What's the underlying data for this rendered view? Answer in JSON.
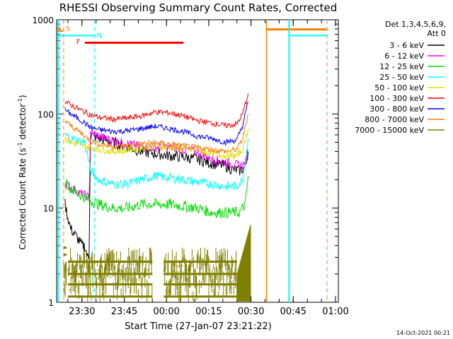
{
  "chart_data": {
    "type": "line",
    "title": "RHESSI Observing Summary Count Rates, Corrected",
    "xlabel": "Start Time (27-Jan-07 23:21:22)",
    "ylabel_main": "Corrected Count Rate (s",
    "ylabel_sup1": "-1",
    "ylabel_mid": " detector",
    "ylabel_sup2": "-1",
    "ylabel_end": ")",
    "x_start_minutes": 0,
    "xlim": [
      0,
      100
    ],
    "y_scale": "log",
    "ylim": [
      1,
      1000
    ],
    "y_ticks": [
      1,
      10,
      100,
      1000
    ],
    "y_tick_labels": [
      "1",
      "10",
      "100",
      "1000"
    ],
    "x_ticks": [
      9,
      24,
      39,
      54,
      69,
      84,
      99
    ],
    "x_tick_labels": [
      "23:30",
      "23:45",
      "00:00",
      "00:15",
      "00:30",
      "00:45",
      "01:00"
    ],
    "legend": {
      "header1": "Det 1,3,4,5,6,9,",
      "header2": "Att 0",
      "entries": [
        {
          "label": "3 - 6 keV",
          "color": "#000000"
        },
        {
          "label": "6 - 12 keV",
          "color": "#ff00ff"
        },
        {
          "label": "12 - 25 keV",
          "color": "#00dd00"
        },
        {
          "label": "25 - 50 keV",
          "color": "#00ffff"
        },
        {
          "label": "50 - 100 keV",
          "color": "#dddd00"
        },
        {
          "label": "100 - 300 keV",
          "color": "#ff0000"
        },
        {
          "label": "300 - 800 keV",
          "color": "#0000ff"
        },
        {
          "label": "800 - 7000 keV",
          "color": "#ff8000"
        },
        {
          "label": "7000 - 15000 keV",
          "color": "#808000"
        }
      ]
    },
    "series": [
      {
        "name": "3 - 6 keV",
        "color": "#000000",
        "noise": 0.06,
        "points": [
          [
            3,
            11
          ],
          [
            4,
            8
          ],
          [
            5,
            6
          ],
          [
            7,
            5
          ],
          [
            9,
            4
          ],
          [
            10,
            4
          ],
          [
            11,
            3
          ],
          [
            11.5,
            3
          ],
          [
            12,
            60
          ],
          [
            15,
            55
          ],
          [
            20,
            50
          ],
          [
            25,
            45
          ],
          [
            30,
            40
          ],
          [
            35,
            38
          ],
          [
            40,
            36
          ],
          [
            45,
            35
          ],
          [
            50,
            33
          ],
          [
            55,
            30
          ],
          [
            60,
            28
          ],
          [
            62,
            26
          ],
          [
            65,
            25
          ],
          [
            67,
            27
          ],
          [
            68,
            40
          ]
        ]
      },
      {
        "name": "6 - 12 keV",
        "color": "#ff00ff",
        "noise": 0.05,
        "points": [
          [
            3,
            18
          ],
          [
            6,
            16
          ],
          [
            9,
            14
          ],
          [
            11.5,
            13
          ],
          [
            12,
            65
          ],
          [
            15,
            58
          ],
          [
            20,
            52
          ],
          [
            30,
            45
          ],
          [
            40,
            44
          ],
          [
            50,
            40
          ],
          [
            55,
            33
          ],
          [
            60,
            31
          ],
          [
            65,
            28
          ],
          [
            67,
            30
          ],
          [
            68,
            42
          ]
        ]
      },
      {
        "name": "12 - 25 keV",
        "color": "#00dd00",
        "noise": 0.06,
        "points": [
          [
            3,
            20
          ],
          [
            5,
            16
          ],
          [
            8,
            14
          ],
          [
            10,
            13
          ],
          [
            12,
            12
          ],
          [
            15,
            11
          ],
          [
            20,
            10
          ],
          [
            25,
            10
          ],
          [
            30,
            11
          ],
          [
            35,
            11
          ],
          [
            40,
            11
          ],
          [
            45,
            10.5
          ],
          [
            50,
            10
          ],
          [
            55,
            9
          ],
          [
            60,
            9
          ],
          [
            65,
            9
          ],
          [
            67,
            11
          ],
          [
            68,
            22
          ]
        ]
      },
      {
        "name": "25 - 50 keV",
        "color": "#00ffff",
        "noise": 0.05,
        "points": [
          [
            3,
            60
          ],
          [
            5,
            55
          ],
          [
            8,
            52
          ],
          [
            10,
            50
          ],
          [
            12,
            25
          ],
          [
            15,
            20
          ],
          [
            20,
            18
          ],
          [
            25,
            18
          ],
          [
            30,
            20
          ],
          [
            35,
            22
          ],
          [
            40,
            21
          ],
          [
            45,
            20
          ],
          [
            50,
            19
          ],
          [
            55,
            18
          ],
          [
            60,
            17
          ],
          [
            64,
            17
          ],
          [
            66,
            20
          ],
          [
            68,
            55
          ]
        ]
      },
      {
        "name": "50 - 100 keV",
        "color": "#dddd00",
        "noise": 0.04,
        "points": [
          [
            3,
            55
          ],
          [
            5,
            50
          ],
          [
            10,
            45
          ],
          [
            15,
            42
          ],
          [
            20,
            40
          ],
          [
            25,
            41
          ],
          [
            30,
            44
          ],
          [
            35,
            46
          ],
          [
            40,
            44
          ],
          [
            45,
            42
          ],
          [
            50,
            41
          ],
          [
            55,
            38
          ],
          [
            60,
            36
          ],
          [
            64,
            36
          ],
          [
            66,
            42
          ],
          [
            68,
            70
          ]
        ]
      },
      {
        "name": "100 - 300 keV",
        "color": "#ff0000",
        "noise": 0.03,
        "points": [
          [
            3,
            135
          ],
          [
            5,
            125
          ],
          [
            8,
            112
          ],
          [
            10,
            105
          ],
          [
            12,
            98
          ],
          [
            15,
            92
          ],
          [
            20,
            88
          ],
          [
            25,
            90
          ],
          [
            30,
            95
          ],
          [
            35,
            105
          ],
          [
            40,
            103
          ],
          [
            45,
            95
          ],
          [
            50,
            85
          ],
          [
            55,
            80
          ],
          [
            60,
            75
          ],
          [
            64,
            78
          ],
          [
            66,
            100
          ],
          [
            68,
            165
          ]
        ]
      },
      {
        "name": "300 - 800 keV",
        "color": "#0000ff",
        "noise": 0.03,
        "points": [
          [
            3,
            110
          ],
          [
            5,
            100
          ],
          [
            8,
            88
          ],
          [
            10,
            80
          ],
          [
            12,
            72
          ],
          [
            15,
            68
          ],
          [
            20,
            65
          ],
          [
            25,
            66
          ],
          [
            30,
            70
          ],
          [
            35,
            74
          ],
          [
            40,
            70
          ],
          [
            45,
            65
          ],
          [
            50,
            58
          ],
          [
            55,
            55
          ],
          [
            60,
            50
          ],
          [
            64,
            53
          ],
          [
            66,
            75
          ],
          [
            68,
            135
          ]
        ]
      },
      {
        "name": "800 - 7000 keV",
        "color": "#ff8000",
        "noise": 0.03,
        "points": [
          [
            3,
            85
          ],
          [
            5,
            75
          ],
          [
            8,
            65
          ],
          [
            10,
            58
          ],
          [
            12,
            52
          ],
          [
            15,
            48
          ],
          [
            20,
            45
          ],
          [
            25,
            46
          ],
          [
            30,
            48
          ],
          [
            35,
            50
          ],
          [
            40,
            48
          ],
          [
            45,
            46
          ],
          [
            50,
            44
          ],
          [
            55,
            42
          ],
          [
            60,
            40
          ],
          [
            64,
            42
          ],
          [
            66,
            55
          ],
          [
            68,
            100
          ]
        ]
      },
      {
        "name": "7000 - 15000 keV",
        "color": "#808000",
        "noise": 0,
        "points": []
      }
    ],
    "olive_segments": [
      {
        "x0": 2.5,
        "x1": 3.5,
        "stripes": [
          3.8,
          3.2
        ]
      },
      {
        "x0": 4,
        "x1": 34,
        "stripes": [
          2.7,
          2,
          1.55,
          1.15
        ]
      },
      {
        "x0": 38,
        "x1": 64,
        "stripes": [
          2.7,
          2,
          1.55,
          1.15
        ]
      },
      {
        "x0": 64,
        "x1": 69,
        "ramp": [
          2,
          7
        ]
      }
    ],
    "flags": [
      {
        "label": "F",
        "type": "flare",
        "color": "#ff0000",
        "x0": 10,
        "x1": 45,
        "y": 570
      }
    ],
    "annotations": {
      "s_label": "S",
      "n_label": "N",
      "saa_color": "#ff8000",
      "night_color": "#00ffff"
    },
    "footer": "14-Oct-2021 00:21"
  }
}
